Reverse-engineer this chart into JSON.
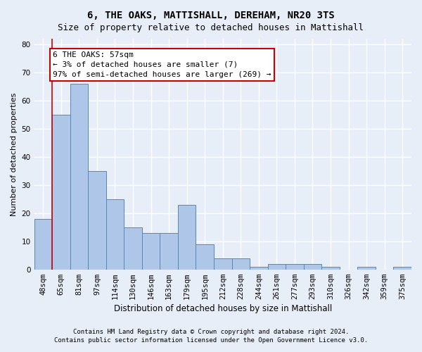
{
  "title": "6, THE OAKS, MATTISHALL, DEREHAM, NR20 3TS",
  "subtitle": "Size of property relative to detached houses in Mattishall",
  "xlabel": "Distribution of detached houses by size in Mattishall",
  "ylabel": "Number of detached properties",
  "bar_values": [
    18,
    55,
    66,
    35,
    25,
    15,
    13,
    13,
    23,
    9,
    4,
    4,
    1,
    2,
    2,
    2,
    1,
    0,
    1,
    0,
    1
  ],
  "bar_labels": [
    "48sqm",
    "65sqm",
    "81sqm",
    "97sqm",
    "114sqm",
    "130sqm",
    "146sqm",
    "163sqm",
    "179sqm",
    "195sqm",
    "212sqm",
    "228sqm",
    "244sqm",
    "261sqm",
    "277sqm",
    "293sqm",
    "310sqm",
    "326sqm",
    "342sqm",
    "359sqm",
    "375sqm"
  ],
  "bar_color": "#aec6e8",
  "bar_edge_color": "#5588bb",
  "ylim": [
    0,
    82
  ],
  "yticks": [
    0,
    10,
    20,
    30,
    40,
    50,
    60,
    70,
    80
  ],
  "annotation_box_text": "6 THE OAKS: 57sqm\n← 3% of detached houses are smaller (7)\n97% of semi-detached houses are larger (269) →",
  "vline_x": 0.5,
  "box_color": "#ffffff",
  "box_edge_color": "#cc0000",
  "footer_line1": "Contains HM Land Registry data © Crown copyright and database right 2024.",
  "footer_line2": "Contains public sector information licensed under the Open Government Licence v3.0.",
  "background_color": "#e8eef8",
  "plot_background_color": "#e8eef8",
  "grid_color": "#ffffff",
  "title_fontsize": 10,
  "subtitle_fontsize": 9,
  "axis_label_fontsize": 8,
  "tick_fontsize": 7.5,
  "annotation_fontsize": 8,
  "footer_fontsize": 6.5
}
